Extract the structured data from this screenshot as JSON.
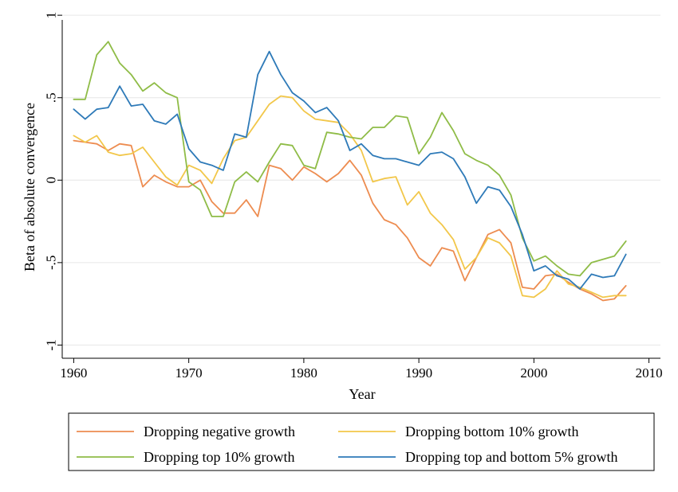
{
  "chart_data": {
    "type": "line",
    "title": "",
    "xlabel": "Year",
    "ylabel": "Beta of absolute convergence",
    "xlim": [
      1959,
      2011
    ],
    "ylim": [
      -1.08,
      1.02
    ],
    "xticks": [
      1960,
      1970,
      1980,
      1990,
      2000,
      2010
    ],
    "xtick_labels": [
      "1960",
      "1970",
      "1980",
      "1990",
      "2000",
      "2010"
    ],
    "yticks": [
      1,
      0.5,
      0,
      -0.5,
      -1
    ],
    "ytick_labels": [
      "1",
      ".5",
      "0",
      "-.5",
      "-1"
    ],
    "grid": true,
    "legend_position": "bottom",
    "x": [
      1960,
      1961,
      1962,
      1963,
      1964,
      1965,
      1966,
      1967,
      1968,
      1969,
      1970,
      1971,
      1972,
      1973,
      1974,
      1975,
      1976,
      1977,
      1978,
      1979,
      1980,
      1981,
      1982,
      1983,
      1984,
      1985,
      1986,
      1987,
      1988,
      1989,
      1990,
      1991,
      1992,
      1993,
      1994,
      1995,
      1996,
      1997,
      1998,
      1999,
      2000,
      2001,
      2002,
      2003,
      2004,
      2005,
      2006,
      2007,
      2008
    ],
    "series": [
      {
        "name": "Dropping negative growth",
        "color": "#ed8c50",
        "values": [
          0.24,
          0.23,
          0.22,
          0.18,
          0.22,
          0.21,
          -0.04,
          0.03,
          -0.01,
          -0.04,
          -0.04,
          0.0,
          -0.13,
          -0.2,
          -0.2,
          -0.12,
          -0.22,
          0.09,
          0.07,
          0.0,
          0.08,
          0.04,
          -0.01,
          0.04,
          0.12,
          0.03,
          -0.14,
          -0.24,
          -0.27,
          -0.35,
          -0.47,
          -0.52,
          -0.41,
          -0.43,
          -0.61,
          -0.47,
          -0.33,
          -0.3,
          -0.38,
          -0.65,
          -0.66,
          -0.58,
          -0.57,
          -0.62,
          -0.66,
          -0.69,
          -0.73,
          -0.72,
          -0.64
        ]
      },
      {
        "name": "Dropping bottom 10% growth",
        "color": "#f2c74a",
        "values": [
          0.27,
          0.23,
          0.27,
          0.17,
          0.15,
          0.16,
          0.2,
          0.11,
          0.02,
          -0.03,
          0.09,
          0.06,
          -0.02,
          0.13,
          0.24,
          0.26,
          0.36,
          0.46,
          0.51,
          0.5,
          0.42,
          0.37,
          0.36,
          0.35,
          0.28,
          0.18,
          -0.01,
          0.01,
          0.02,
          -0.15,
          -0.07,
          -0.2,
          -0.27,
          -0.36,
          -0.54,
          -0.47,
          -0.35,
          -0.38,
          -0.46,
          -0.7,
          -0.71,
          -0.66,
          -0.55,
          -0.63,
          -0.65,
          -0.68,
          -0.71,
          -0.7,
          -0.7
        ]
      },
      {
        "name": "Dropping top 10% growth",
        "color": "#8fbc47",
        "values": [
          0.49,
          0.49,
          0.76,
          0.84,
          0.71,
          0.64,
          0.54,
          0.59,
          0.53,
          0.5,
          -0.01,
          -0.06,
          -0.22,
          -0.22,
          -0.01,
          0.05,
          -0.01,
          0.11,
          0.22,
          0.21,
          0.09,
          0.07,
          0.29,
          0.28,
          0.26,
          0.25,
          0.32,
          0.32,
          0.39,
          0.38,
          0.16,
          0.26,
          0.41,
          0.3,
          0.16,
          0.12,
          0.09,
          0.03,
          -0.09,
          -0.35,
          -0.49,
          -0.46,
          -0.52,
          -0.57,
          -0.58,
          -0.5,
          -0.48,
          -0.46,
          -0.37
        ]
      },
      {
        "name": "Dropping top and bottom 5% growth",
        "color": "#2e7ab8",
        "values": [
          0.43,
          0.37,
          0.43,
          0.44,
          0.57,
          0.45,
          0.46,
          0.36,
          0.34,
          0.4,
          0.19,
          0.11,
          0.09,
          0.06,
          0.28,
          0.26,
          0.64,
          0.78,
          0.64,
          0.53,
          0.48,
          0.41,
          0.44,
          0.36,
          0.18,
          0.22,
          0.15,
          0.13,
          0.13,
          0.11,
          0.09,
          0.16,
          0.17,
          0.13,
          0.02,
          -0.14,
          -0.04,
          -0.06,
          -0.16,
          -0.33,
          -0.55,
          -0.52,
          -0.58,
          -0.6,
          -0.66,
          -0.57,
          -0.59,
          -0.58,
          -0.45
        ]
      }
    ]
  }
}
